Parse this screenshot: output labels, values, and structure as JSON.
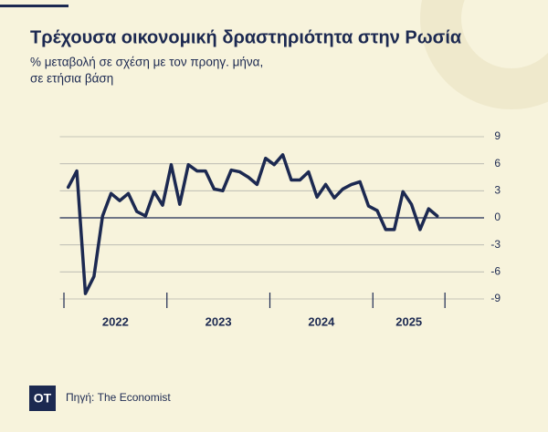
{
  "chart_data": {
    "type": "line",
    "title": "Τρέχουσα οικονομική δραστηριότητα στην Ρωσία",
    "subtitle": [
      "% μεταβολή σε σχέση με τον προηγ. μήνα,",
      "σε ετήσια βάση"
    ],
    "source": "Πηγή: The Economist",
    "logo": "OT",
    "x": [
      2022.042,
      2022.125,
      2022.208,
      2022.292,
      2022.375,
      2022.458,
      2022.542,
      2022.625,
      2022.708,
      2022.792,
      2022.875,
      2022.958,
      2023.042,
      2023.125,
      2023.208,
      2023.292,
      2023.375,
      2023.458,
      2023.542,
      2023.625,
      2023.708,
      2023.792,
      2023.875,
      2023.958,
      2024.042,
      2024.125,
      2024.208,
      2024.292,
      2024.375,
      2024.458,
      2024.542,
      2024.625,
      2024.708,
      2024.792,
      2024.875,
      2024.958,
      2025.042,
      2025.125,
      2025.208,
      2025.292,
      2025.375,
      2025.458,
      2025.542,
      2025.625
    ],
    "series": [
      {
        "color": "#1c2951",
        "values": [
          3.4,
          5.2,
          -8.4,
          -6.5,
          0.2,
          2.7,
          1.9,
          2.7,
          0.7,
          0.2,
          2.9,
          1.4,
          5.9,
          1.5,
          5.9,
          5.2,
          5.2,
          3.2,
          3.0,
          5.3,
          5.1,
          4.5,
          3.7,
          6.6,
          5.9,
          7.0,
          4.2,
          4.2,
          5.1,
          2.3,
          3.7,
          2.2,
          3.2,
          3.7,
          4.0,
          1.3,
          0.8,
          -1.3,
          -1.3,
          2.9,
          1.5,
          -1.3,
          1.0,
          0.2
        ]
      }
    ],
    "xlim": [
      2021.96,
      2026.08
    ],
    "xticks": [
      2022,
      2023,
      2024,
      2025,
      2025.7
    ],
    "xlabels": [
      {
        "value": 2022.5,
        "label": "2022"
      },
      {
        "value": 2023.5,
        "label": "2023"
      },
      {
        "value": 2024.5,
        "label": "2024"
      },
      {
        "value": 2025.35,
        "label": "2025"
      }
    ],
    "ylim": [
      -9,
      9
    ],
    "yticks": [
      9,
      6,
      3,
      0,
      -3,
      -6,
      -9
    ],
    "grid": true
  }
}
